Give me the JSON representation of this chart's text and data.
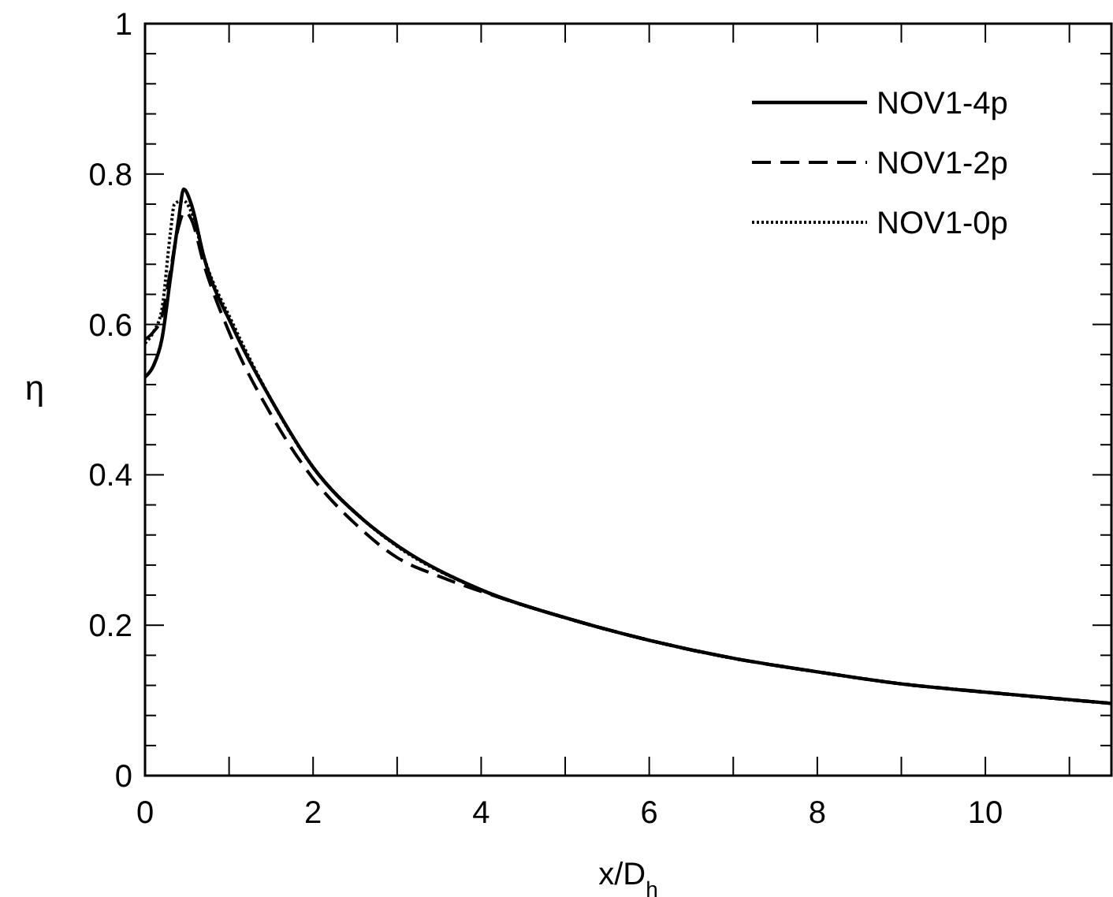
{
  "chart_data": {
    "type": "line",
    "xlabel": "x/D$_{h}$",
    "ylabel": "η",
    "xlim": [
      0,
      11.5
    ],
    "ylim": [
      0,
      1
    ],
    "xticks": [
      0,
      2,
      4,
      6,
      8,
      10
    ],
    "yticks": [
      0,
      0.2,
      0.4,
      0.6,
      0.8,
      1
    ],
    "legend": "top right",
    "grid": false,
    "series": [
      {
        "name": "NOV1-4p",
        "color": "#000000",
        "line_style": "solid",
        "x": [
          0,
          0.1,
          0.2,
          0.3,
          0.4,
          0.46,
          0.55,
          0.7,
          1.05,
          1.5,
          2,
          2.6,
          3,
          4,
          5,
          6,
          7,
          8,
          9,
          10,
          11.5
        ],
        "values": [
          0.53,
          0.545,
          0.58,
          0.66,
          0.74,
          0.78,
          0.76,
          0.69,
          0.595,
          0.5,
          0.41,
          0.34,
          0.306,
          0.247,
          0.21,
          0.18,
          0.156,
          0.138,
          0.122,
          0.111,
          0.096
        ]
      },
      {
        "name": "NOV1-2p",
        "color": "#000000",
        "line_style": "dashed",
        "x": [
          0,
          0.1,
          0.2,
          0.3,
          0.4,
          0.47,
          0.55,
          0.7,
          1,
          1.5,
          2,
          2.5,
          3,
          3.5,
          4,
          5,
          6,
          7,
          8,
          9,
          10,
          11.5
        ],
        "values": [
          0.58,
          0.59,
          0.61,
          0.67,
          0.73,
          0.75,
          0.74,
          0.68,
          0.59,
          0.48,
          0.395,
          0.335,
          0.29,
          0.265,
          0.245,
          0.21,
          0.18,
          0.156,
          0.138,
          0.122,
          0.111,
          0.096
        ]
      },
      {
        "name": "NOV1-0p",
        "color": "#000000",
        "line_style": "dotted",
        "x": [
          0,
          0.1,
          0.2,
          0.3,
          0.35,
          0.45,
          0.55,
          0.7,
          1.05,
          1.5,
          2,
          2.6,
          3,
          4,
          5,
          6,
          7,
          8,
          9,
          10,
          11.5
        ],
        "values": [
          0.575,
          0.59,
          0.62,
          0.72,
          0.76,
          0.765,
          0.75,
          0.69,
          0.6,
          0.5,
          0.41,
          0.34,
          0.305,
          0.247,
          0.21,
          0.18,
          0.156,
          0.138,
          0.122,
          0.111,
          0.096
        ]
      }
    ]
  }
}
